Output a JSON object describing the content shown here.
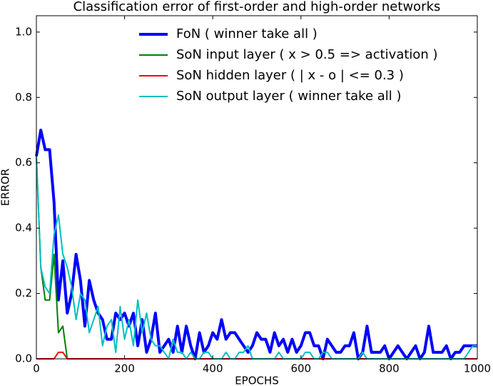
{
  "chart_data": {
    "type": "line",
    "title": "Classification error of first-order and high-order networks",
    "x_label": "EPOCHS",
    "y_label": "ERROR",
    "x": [
      0,
      10,
      20,
      30,
      40,
      50,
      60,
      70,
      80,
      90,
      100,
      110,
      120,
      130,
      140,
      150,
      160,
      170,
      180,
      190,
      200,
      210,
      220,
      230,
      240,
      250,
      260,
      270,
      280,
      290,
      300,
      310,
      320,
      330,
      340,
      350,
      360,
      370,
      380,
      390,
      400,
      410,
      420,
      430,
      440,
      450,
      460,
      470,
      480,
      490,
      500,
      510,
      520,
      530,
      540,
      550,
      560,
      570,
      580,
      590,
      600,
      610,
      620,
      630,
      640,
      650,
      660,
      670,
      680,
      690,
      700,
      710,
      720,
      730,
      740,
      750,
      760,
      770,
      780,
      790,
      800,
      810,
      820,
      830,
      840,
      850,
      860,
      870,
      880,
      890,
      900,
      910,
      920,
      930,
      940,
      950,
      960,
      970,
      980,
      990,
      1000
    ],
    "series": [
      {
        "name": "FoN ( winner take all )",
        "color": "#0000ff",
        "width": 4,
        "values": [
          0.62,
          0.7,
          0.64,
          0.64,
          0.48,
          0.18,
          0.3,
          0.14,
          0.2,
          0.32,
          0.24,
          0.1,
          0.24,
          0.18,
          0.14,
          0.12,
          0.06,
          0.06,
          0.14,
          0.12,
          0.14,
          0.1,
          0.14,
          0.04,
          0.12,
          0.02,
          0.06,
          0.14,
          0.02,
          0.04,
          0.06,
          0.02,
          0.1,
          0.02,
          0.1,
          0.04,
          0.0,
          0.08,
          0.02,
          0.04,
          0.08,
          0.06,
          0.12,
          0.06,
          0.08,
          0.08,
          0.06,
          0.04,
          0.02,
          0.04,
          0.08,
          0.06,
          0.06,
          0.02,
          0.08,
          0.04,
          0.06,
          0.02,
          0.06,
          0.02,
          0.04,
          0.08,
          0.08,
          0.04,
          0.04,
          0.0,
          0.06,
          0.04,
          0.02,
          0.02,
          0.04,
          0.04,
          0.08,
          0.0,
          0.02,
          0.1,
          0.02,
          0.02,
          0.02,
          0.04,
          0.0,
          0.02,
          0.04,
          0.02,
          0.0,
          0.02,
          0.04,
          0.0,
          0.02,
          0.1,
          0.02,
          0.02,
          0.02,
          0.04,
          0.0,
          0.02,
          0.02,
          0.04,
          0.04,
          0.04,
          0.04
        ]
      },
      {
        "name": "SoN input layer ( x > 0.5 => activation )",
        "color": "#008000",
        "width": 2,
        "values": [
          0.62,
          0.28,
          0.18,
          0.18,
          0.32,
          0.08,
          0.1,
          0,
          0,
          0,
          0,
          0,
          0,
          0,
          0,
          0,
          0,
          0,
          0,
          0,
          0,
          0,
          0,
          0,
          0,
          0,
          0,
          0,
          0,
          0,
          0,
          0,
          0,
          0,
          0,
          0,
          0,
          0,
          0,
          0,
          0,
          0,
          0,
          0,
          0,
          0,
          0,
          0,
          0,
          0,
          0,
          0,
          0,
          0,
          0,
          0,
          0,
          0,
          0,
          0,
          0,
          0,
          0,
          0,
          0,
          0,
          0,
          0,
          0,
          0,
          0,
          0,
          0,
          0,
          0,
          0,
          0,
          0,
          0,
          0,
          0,
          0,
          0,
          0,
          0,
          0,
          0,
          0,
          0,
          0,
          0,
          0,
          0,
          0,
          0,
          0,
          0,
          0,
          0,
          0,
          0
        ]
      },
      {
        "name": "SoN hidden layer ( | x - o | <= 0.3 )",
        "color": "#ff0000",
        "width": 2,
        "values": [
          0,
          0,
          0,
          0,
          0,
          0.02,
          0.02,
          0,
          0,
          0,
          0,
          0,
          0,
          0,
          0,
          0,
          0,
          0,
          0,
          0,
          0,
          0,
          0,
          0,
          0,
          0,
          0,
          0,
          0,
          0,
          0,
          0,
          0,
          0,
          0,
          0,
          0,
          0,
          0,
          0,
          0,
          0,
          0,
          0,
          0,
          0,
          0,
          0,
          0,
          0,
          0,
          0,
          0,
          0,
          0,
          0,
          0,
          0,
          0,
          0,
          0,
          0,
          0,
          0,
          0,
          0,
          0,
          0,
          0,
          0,
          0,
          0,
          0,
          0,
          0,
          0,
          0,
          0,
          0,
          0,
          0,
          0,
          0,
          0,
          0,
          0,
          0,
          0,
          0,
          0,
          0,
          0,
          0,
          0,
          0,
          0,
          0,
          0,
          0,
          0,
          0
        ]
      },
      {
        "name": "SoN output layer ( winner take all )",
        "color": "#00bfbf",
        "width": 2,
        "values": [
          0.62,
          0.28,
          0.22,
          0.2,
          0.38,
          0.44,
          0.32,
          0.28,
          0.22,
          0.12,
          0.2,
          0.18,
          0.08,
          0.12,
          0.16,
          0.04,
          0.1,
          0.12,
          0.02,
          0.16,
          0.06,
          0.12,
          0.04,
          0.18,
          0.08,
          0.14,
          0.06,
          0.04,
          0.04,
          0.02,
          0.0,
          0.06,
          0.02,
          0.02,
          0.0,
          0.02,
          0.0,
          0.0,
          0.02,
          0.02,
          0.0,
          0.0,
          0.0,
          0.02,
          0.0,
          0.0,
          0.02,
          0.02,
          0.04,
          0.0,
          0.0,
          0.0,
          0.0,
          0.0,
          0.0,
          0.02,
          0.0,
          0.0,
          0.0,
          0.0,
          0.0,
          0.02,
          0.02,
          0.0,
          0.0,
          0.02,
          0.02,
          0.0,
          0.0,
          0.0,
          0.0,
          0.0,
          0.0,
          0.0,
          0.02,
          0.0,
          0.0,
          0.0,
          0.0,
          0.0,
          0.0,
          0.0,
          0.0,
          0.0,
          0.0,
          0.0,
          0.0,
          0.0,
          0.0,
          0.0,
          0.0,
          0.0,
          0.0,
          0.0,
          0.0,
          0.0,
          0.0,
          0.0,
          0.02,
          0.04,
          0.04
        ]
      }
    ],
    "xlim": [
      0,
      1000
    ],
    "xticks": [
      0,
      200,
      400,
      600,
      800,
      1000
    ],
    "ylim": [
      0,
      1.05
    ],
    "yticks": [
      {
        "value": 0,
        "label": "0.0"
      },
      0.2,
      0.4,
      0.6,
      0.8,
      {
        "value": 1,
        "label": "1.0"
      }
    ],
    "legend": "upper center",
    "grid": false
  }
}
